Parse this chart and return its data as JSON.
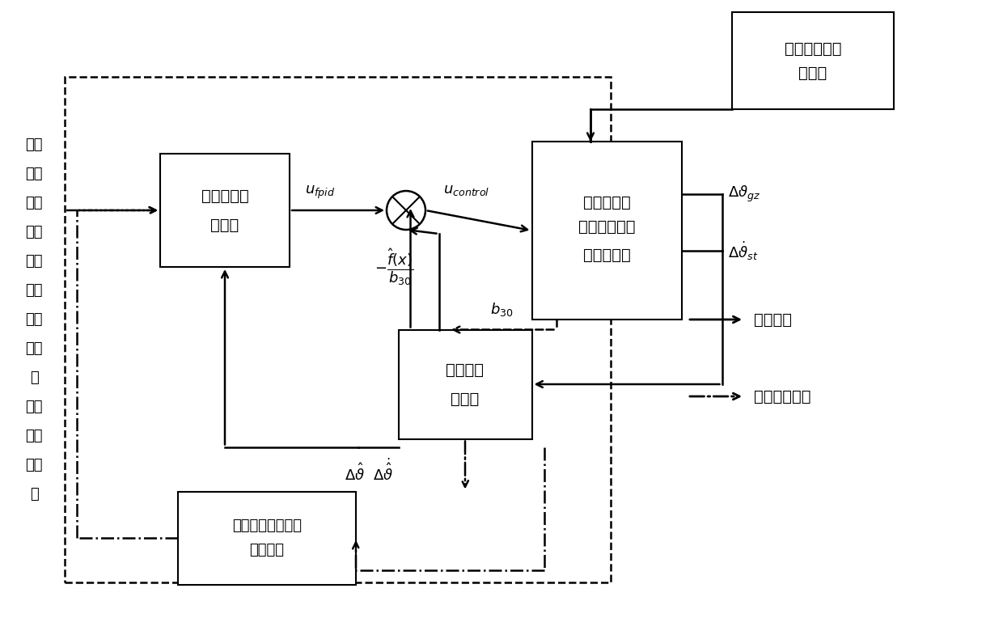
{
  "background_color": "#ffffff",
  "left_text": "基于\n非线\n性反\n馈和\n微分\n跟踪\n的运\n载火\n箭\n姿态\n智能\n控制\n器",
  "legend": {
    "solid_label": "姿态控制",
    "dashdot_label": "离线参数整定"
  }
}
